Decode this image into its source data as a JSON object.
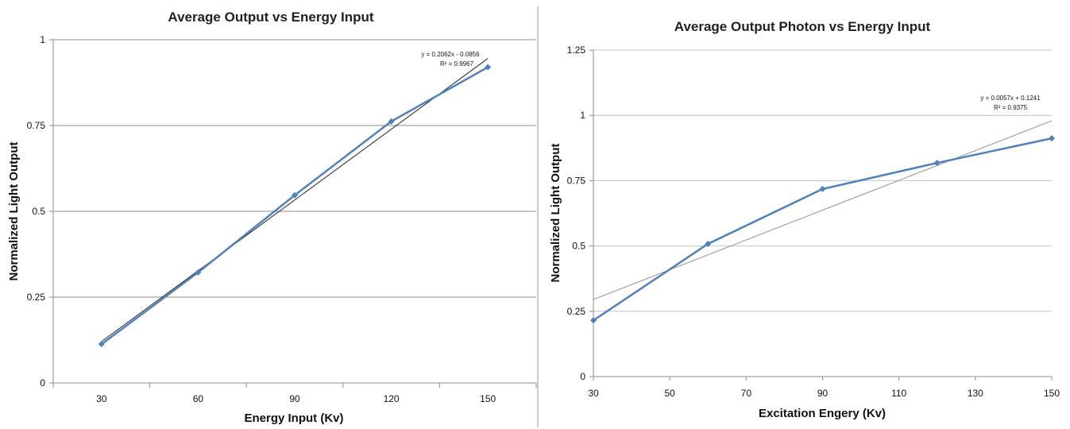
{
  "chart_data": [
    {
      "type": "line",
      "title": "Average Output vs Energy Input",
      "xlabel": "Energy Input (Kv)",
      "ylabel": "Normalized Light Output",
      "x_categories": [
        "30",
        "60",
        "90",
        "120",
        "150"
      ],
      "ylim": [
        0,
        1
      ],
      "y_ticks": [
        "0",
        "0.25",
        "0.5",
        "0.75",
        "1"
      ],
      "series": [
        {
          "x": [
            30,
            60,
            90,
            120,
            150
          ],
          "values": [
            0.113,
            0.322,
            0.547,
            0.762,
            0.92
          ],
          "color": "#4f81bd"
        }
      ],
      "trendline": {
        "slope": 0.2062,
        "intercept": -0.0856,
        "equation": "y = 0.2062x - 0.0856",
        "r2": "R² = 0.9967"
      },
      "grid": true
    },
    {
      "type": "line",
      "title": "Average Output Photon vs Energy Input",
      "xlabel": "Excitation Engery (Kv)",
      "ylabel": "Normalized Light Output",
      "xlim": [
        30,
        150
      ],
      "x_ticks": [
        "30",
        "50",
        "70",
        "90",
        "110",
        "130",
        "150"
      ],
      "ylim": [
        0,
        1.25
      ],
      "y_ticks": [
        "0",
        "0.25",
        "0.5",
        "0.75",
        "1",
        "1.25"
      ],
      "series": [
        {
          "x": [
            30,
            60,
            90,
            120,
            150
          ],
          "values": [
            0.215,
            0.508,
            0.718,
            0.818,
            0.912
          ],
          "color": "#4f81bd"
        }
      ],
      "trendline": {
        "slope": 0.0057,
        "intercept": 0.1241,
        "equation": "y = 0.0057x + 0.1241",
        "r2": "R² = 0.9375"
      },
      "grid": true
    }
  ]
}
